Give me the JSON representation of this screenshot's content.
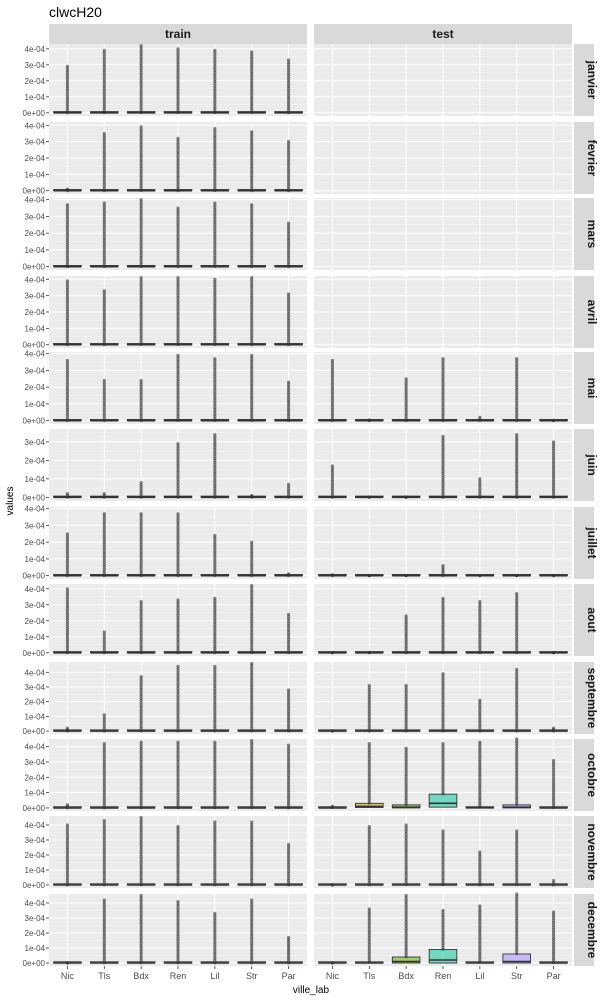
{
  "chart_data": {
    "type": "box",
    "title": "clwcH20",
    "xlabel": "ville_lab",
    "ylabel": "values",
    "x_categories": [
      "Nic",
      "Tls",
      "Bdx",
      "Ren",
      "Lil",
      "Str",
      "Par"
    ],
    "facet_columns": [
      "train",
      "test"
    ],
    "facet_rows": [
      "janvier",
      "fevrier",
      "mars",
      "avril",
      "mai",
      "juin",
      "juillet",
      "aout",
      "septembre",
      "octobre",
      "novembre",
      "decembre"
    ],
    "y_tick_labels": [
      "0e+00",
      "1e-04",
      "2e-04",
      "3e-04",
      "4e-04"
    ],
    "y_ticks": [
      0,
      0.0001,
      0.0002,
      0.0003,
      0.0004
    ],
    "fill_colors": {
      "Nic": "#f8766d",
      "Tls": "#c49a00",
      "Bdx": "#53b400",
      "Ren": "#00c094",
      "Lil": "#00b6eb",
      "Str": "#a58aff",
      "Par": "#fb61d7"
    },
    "panel_ylim": [
      [
        -2e-05,
        0.00043
      ],
      [
        -2e-05,
        0.00042
      ],
      [
        -2e-05,
        0.00041
      ],
      [
        -2e-05,
        0.00042
      ],
      [
        -2e-05,
        0.00041
      ],
      [
        -2e-05,
        0.00037
      ],
      [
        -2e-05,
        0.00041
      ],
      [
        -2e-05,
        0.00043
      ],
      [
        -2e-05,
        0.00047
      ],
      [
        -2e-05,
        0.00045
      ],
      [
        -2e-05,
        0.00046
      ],
      [
        -2e-05,
        0.00046
      ]
    ],
    "panels": {
      "train": [
        {
          "Nic": [
            0,
            0,
            0,
            0,
            0.00029
          ],
          "Tls": [
            0,
            0,
            0,
            1e-06,
            0.00039
          ],
          "Bdx": [
            0,
            0,
            0,
            1e-06,
            0.00042
          ],
          "Ren": [
            0,
            0,
            0,
            1e-06,
            0.0004
          ],
          "Lil": [
            0,
            0,
            0,
            1e-06,
            0.00039
          ],
          "Str": [
            0,
            0,
            0,
            1e-06,
            0.00038
          ],
          "Par": [
            0,
            0,
            0,
            0,
            0.00033
          ]
        },
        {
          "Nic": [
            0,
            0,
            0,
            0,
            1e-05
          ],
          "Tls": [
            0,
            0,
            0,
            0,
            0.00035
          ],
          "Bdx": [
            0,
            0,
            0,
            1e-06,
            0.00039
          ],
          "Ren": [
            0,
            0,
            0,
            0,
            0.00032
          ],
          "Lil": [
            0,
            0,
            0,
            1e-06,
            0.00038
          ],
          "Str": [
            0,
            0,
            0,
            0,
            0.00036
          ],
          "Par": [
            0,
            0,
            0,
            0,
            0.0003
          ]
        },
        {
          "Nic": [
            0,
            0,
            0,
            0,
            0.00037
          ],
          "Tls": [
            0,
            0,
            0,
            0,
            0.00038
          ],
          "Bdx": [
            0,
            0,
            0,
            1e-06,
            0.0004
          ],
          "Ren": [
            0,
            0,
            0,
            0,
            0.00035
          ],
          "Lil": [
            0,
            0,
            0,
            1e-06,
            0.00038
          ],
          "Str": [
            0,
            0,
            0,
            0,
            0.00037
          ],
          "Par": [
            0,
            0,
            0,
            0,
            0.00026
          ]
        },
        {
          "Nic": [
            0,
            0,
            0,
            0,
            0.00039
          ],
          "Tls": [
            0,
            0,
            0,
            0,
            0.00033
          ],
          "Bdx": [
            0,
            0,
            0,
            1e-06,
            0.00041
          ],
          "Ren": [
            0,
            0,
            0,
            1e-06,
            0.00041
          ],
          "Lil": [
            0,
            0,
            0,
            1e-06,
            0.0004
          ],
          "Str": [
            0,
            0,
            0,
            0,
            0.00041
          ],
          "Par": [
            0,
            0,
            0,
            0,
            0.00031
          ]
        },
        {
          "Nic": [
            0,
            0,
            0,
            0,
            0.00036
          ],
          "Tls": [
            0,
            0,
            0,
            0,
            0.00024
          ],
          "Bdx": [
            0,
            0,
            0,
            0,
            0.00024
          ],
          "Ren": [
            0,
            0,
            0,
            1e-06,
            0.00039
          ],
          "Lil": [
            0,
            0,
            0,
            0,
            0.00037
          ],
          "Str": [
            0,
            0,
            0,
            1e-06,
            0.00039
          ],
          "Par": [
            0,
            0,
            0,
            0,
            0.00023
          ]
        },
        {
          "Nic": [
            0,
            0,
            0,
            0,
            2e-05
          ],
          "Tls": [
            0,
            0,
            0,
            0,
            2e-05
          ],
          "Bdx": [
            0,
            0,
            0,
            0,
            8e-05
          ],
          "Ren": [
            0,
            0,
            0,
            0,
            0.00029
          ],
          "Lil": [
            0,
            0,
            0,
            0,
            0.00034
          ],
          "Str": [
            0,
            0,
            0,
            0,
            1e-05
          ],
          "Par": [
            0,
            0,
            0,
            0,
            7e-05
          ]
        },
        {
          "Nic": [
            0,
            0,
            0,
            0,
            0.00025
          ],
          "Tls": [
            0,
            0,
            0,
            0,
            0.00037
          ],
          "Bdx": [
            0,
            0,
            0,
            0,
            0.00037
          ],
          "Ren": [
            0,
            0,
            0,
            0,
            0.00037
          ],
          "Lil": [
            0,
            0,
            0,
            0,
            0.00024
          ],
          "Str": [
            0,
            0,
            0,
            0,
            0.0002
          ],
          "Par": [
            0,
            0,
            0,
            0,
            1e-05
          ]
        },
        {
          "Nic": [
            0,
            0,
            0,
            0,
            0.0004
          ],
          "Tls": [
            0,
            0,
            0,
            0,
            0.00013
          ],
          "Bdx": [
            0,
            0,
            0,
            0,
            0.00032
          ],
          "Ren": [
            0,
            0,
            0,
            0,
            0.00033
          ],
          "Lil": [
            0,
            0,
            0,
            0,
            0.00034
          ],
          "Str": [
            0,
            0,
            0,
            1e-06,
            0.00042
          ],
          "Par": [
            0,
            0,
            0,
            0,
            0.00024
          ]
        },
        {
          "Nic": [
            0,
            0,
            0,
            0,
            2e-05
          ],
          "Tls": [
            0,
            0,
            0,
            0,
            0.00011
          ],
          "Bdx": [
            0,
            0,
            0,
            0,
            0.00037
          ],
          "Ren": [
            0,
            0,
            0,
            1e-06,
            0.00044
          ],
          "Lil": [
            0,
            0,
            0,
            1e-06,
            0.00044
          ],
          "Str": [
            0,
            0,
            0,
            1e-06,
            0.00046
          ],
          "Par": [
            0,
            0,
            0,
            0,
            0.00028
          ]
        },
        {
          "Nic": [
            0,
            0,
            0,
            0,
            2e-05
          ],
          "Tls": [
            0,
            0,
            0,
            0,
            0.00042
          ],
          "Bdx": [
            0,
            0,
            0,
            1e-06,
            0.00043
          ],
          "Ren": [
            0,
            0,
            0,
            1e-06,
            0.00043
          ],
          "Lil": [
            0,
            0,
            0,
            1e-06,
            0.00043
          ],
          "Str": [
            0,
            0,
            0,
            1e-06,
            0.00044
          ],
          "Par": [
            0,
            0,
            0,
            0,
            0.00041
          ]
        },
        {
          "Nic": [
            0,
            0,
            0,
            0,
            0.0004
          ],
          "Tls": [
            0,
            0,
            0,
            1e-06,
            0.00043
          ],
          "Bdx": [
            0,
            0,
            0,
            1e-06,
            0.00045
          ],
          "Ren": [
            0,
            0,
            0,
            1e-06,
            0.00039
          ],
          "Lil": [
            0,
            0,
            0,
            1e-06,
            0.00042
          ],
          "Str": [
            0,
            0,
            0,
            1e-06,
            0.00042
          ],
          "Par": [
            0,
            0,
            0,
            0,
            0.00027
          ]
        },
        {
          "Nic": [
            0,
            0,
            0,
            0,
            2e-06
          ],
          "Tls": [
            0,
            0,
            0,
            1e-06,
            0.00042
          ],
          "Bdx": [
            0,
            0,
            0,
            1e-06,
            0.00045
          ],
          "Ren": [
            0,
            0,
            0,
            0,
            0.00041
          ],
          "Lil": [
            0,
            0,
            0,
            0,
            0.00033
          ],
          "Str": [
            0,
            0,
            0,
            1e-06,
            0.00042
          ],
          "Par": [
            0,
            0,
            0,
            0,
            0.00017
          ]
        }
      ],
      "test": [
        null,
        null,
        null,
        null,
        {
          "Nic": [
            0,
            0,
            0,
            0,
            0.00036
          ],
          "Tls": [
            0,
            0,
            0,
            0,
            4e-06
          ],
          "Bdx": [
            0,
            0,
            0,
            0,
            0.00025
          ],
          "Ren": [
            0,
            0,
            0,
            0,
            0.00037
          ],
          "Lil": [
            0,
            0,
            0,
            0,
            2e-05
          ],
          "Str": [
            0,
            0,
            0,
            0,
            0.00037
          ],
          "Par": [
            0,
            0,
            0,
            0,
            2e-06
          ]
        },
        {
          "Nic": [
            0,
            0,
            0,
            0,
            0.00017
          ],
          "Tls": [
            0,
            0,
            0,
            0,
            2e-06
          ],
          "Bdx": [
            0,
            0,
            0,
            0,
            2e-06
          ],
          "Ren": [
            0,
            0,
            0,
            0,
            0.00033
          ],
          "Lil": [
            0,
            0,
            0,
            0,
            0.0001
          ],
          "Str": [
            0,
            0,
            0,
            0,
            0.00034
          ],
          "Par": [
            0,
            0,
            0,
            0,
            0.0003
          ]
        },
        {
          "Nic": [
            0,
            0,
            0,
            0,
            5e-06
          ],
          "Tls": [
            0,
            0,
            0,
            0,
            2e-06
          ],
          "Bdx": [
            0,
            0,
            0,
            0,
            2e-06
          ],
          "Ren": [
            0,
            0,
            0,
            0,
            6e-05
          ],
          "Lil": [
            0,
            0,
            0,
            0,
            2e-06
          ],
          "Str": [
            0,
            0,
            0,
            0,
            2e-06
          ],
          "Par": [
            0,
            0,
            0,
            0,
            2e-06
          ]
        },
        {
          "Nic": [
            0,
            0,
            0,
            0,
            2e-06
          ],
          "Tls": [
            0,
            0,
            0,
            0,
            3e-06
          ],
          "Bdx": [
            0,
            0,
            0,
            0,
            0.00023
          ],
          "Ren": [
            0,
            0,
            0,
            0,
            0.00034
          ],
          "Lil": [
            0,
            0,
            0,
            0,
            0.00032
          ],
          "Str": [
            0,
            0,
            0,
            0,
            0.00037
          ],
          "Par": [
            0,
            0,
            0,
            0,
            2e-06
          ]
        },
        {
          "Nic": [
            0,
            0,
            0,
            0,
            2e-06
          ],
          "Tls": [
            0,
            0,
            0,
            0,
            0.00031
          ],
          "Bdx": [
            0,
            0,
            0,
            0,
            0.00031
          ],
          "Ren": [
            0,
            0,
            0,
            1e-06,
            0.00039
          ],
          "Lil": [
            0,
            0,
            0,
            0,
            0.00021
          ],
          "Str": [
            0,
            0,
            0,
            1e-06,
            0.00042
          ],
          "Par": [
            0,
            0,
            0,
            0,
            2e-05
          ]
        },
        {
          "Nic": [
            0,
            0,
            0,
            2e-06,
            1e-05
          ],
          "Tls": [
            0,
            3e-06,
            1e-05,
            3e-05,
            0.00042
          ],
          "Bdx": [
            0,
            0,
            5e-06,
            2e-05,
            0.00039
          ],
          "Ren": [
            0,
            5e-06,
            3e-05,
            9e-05,
            0.00042
          ],
          "Lil": [
            0,
            0,
            1e-06,
            5e-06,
            0.00043
          ],
          "Str": [
            0,
            0,
            5e-06,
            2e-05,
            0.00045
          ],
          "Par": [
            0,
            0,
            0,
            2e-06,
            0.00031
          ]
        },
        {
          "Nic": [
            0,
            0,
            0,
            0,
            2e-06
          ],
          "Tls": [
            0,
            0,
            0,
            1e-06,
            0.00039
          ],
          "Bdx": [
            0,
            0,
            0,
            2e-06,
            0.0004
          ],
          "Ren": [
            0,
            0,
            0,
            2e-06,
            0.00036
          ],
          "Lil": [
            0,
            0,
            0,
            1e-06,
            0.00022
          ],
          "Str": [
            0,
            0,
            0,
            2e-06,
            0.00036
          ],
          "Par": [
            0,
            0,
            0,
            0,
            3e-05
          ]
        },
        {
          "Nic": [
            0,
            0,
            0,
            0,
            2e-06
          ],
          "Tls": [
            0,
            0,
            0,
            5e-06,
            0.00036
          ],
          "Bdx": [
            0,
            0,
            1e-05,
            4e-05,
            0.00045
          ],
          "Ren": [
            0,
            0,
            2e-05,
            9e-05,
            0.00035
          ],
          "Lil": [
            0,
            0,
            0,
            5e-06,
            0.00038
          ],
          "Str": [
            0,
            0,
            1e-05,
            6e-05,
            0.00046
          ],
          "Par": [
            0,
            0,
            0,
            2e-06,
            0.00034
          ]
        }
      ]
    }
  }
}
